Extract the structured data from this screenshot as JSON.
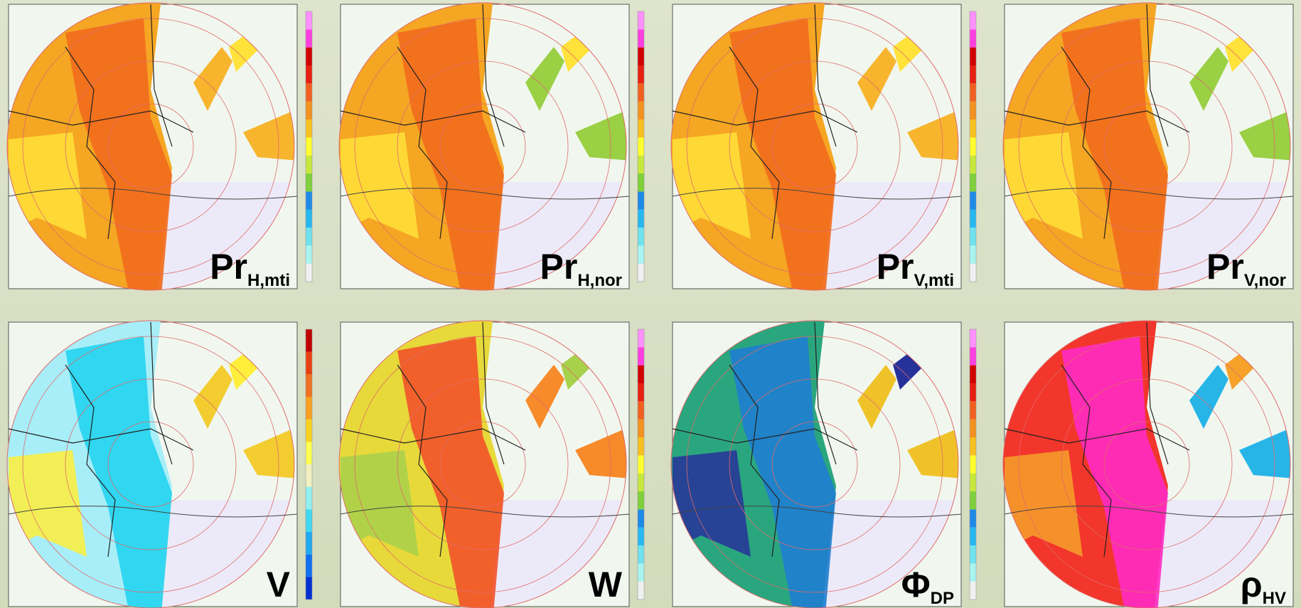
{
  "panels": [
    {
      "label": "Pr",
      "sub": "H,mti"
    },
    {
      "label": "Pr",
      "sub": "H,nor"
    },
    {
      "label": "Pr",
      "sub": "V,mti"
    },
    {
      "label": "Pr",
      "sub": "V,nor"
    },
    {
      "label": "V",
      "sub": ""
    },
    {
      "label": "W",
      "sub": ""
    },
    {
      "label": "Φ",
      "sub": "DP"
    },
    {
      "label": "ρ",
      "sub": "HV"
    }
  ]
}
